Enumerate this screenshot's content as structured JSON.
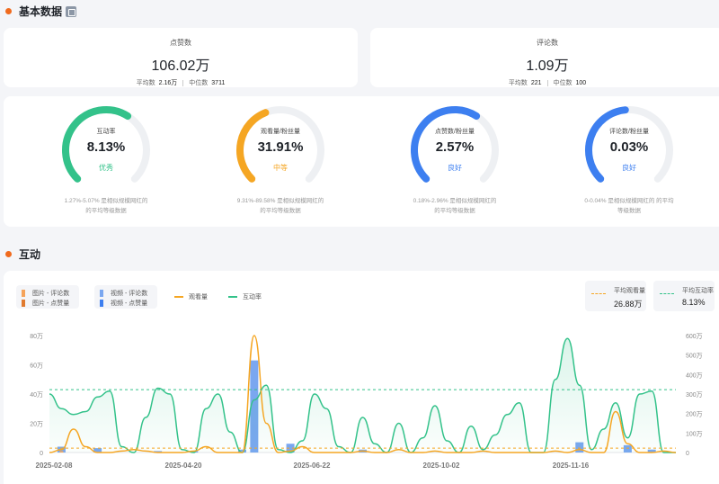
{
  "basic": {
    "title": "基本数据",
    "likes": {
      "label": "点赞数",
      "value": "106.02万",
      "avg_label": "平均数",
      "avg": "2.16万",
      "median_label": "中位数",
      "median": "3711"
    },
    "comments": {
      "label": "评论数",
      "value": "1.09万",
      "avg_label": "平均数",
      "avg": "221",
      "median_label": "中位数",
      "median": "100"
    }
  },
  "gauges": [
    {
      "label": "互动率",
      "value": "8.13%",
      "level": "优秀",
      "color": "#33c28a",
      "fill": 0.62,
      "note1": "1.27%-5.07% 是相似规模网红的",
      "note2": "的平均等级数据"
    },
    {
      "label": "观看量/粉丝量",
      "value": "31.91%",
      "level": "中等",
      "color": "#f5a623",
      "fill": 0.42,
      "note1": "9.31%-89.58% 是相似规模网红的",
      "note2": "的平均等级数据"
    },
    {
      "label": "点赞数/粉丝量",
      "value": "2.57%",
      "level": "良好",
      "color": "#3d7ff0",
      "fill": 0.62,
      "note1": "0.18%-2.96% 是相似规模网红的",
      "note2": "的平均等级数据"
    },
    {
      "label": "评论数/粉丝量",
      "value": "0.03%",
      "level": "良好",
      "color": "#3d7ff0",
      "fill": 0.48,
      "note1": "0-0.04% 是相似规模网红的 的平均",
      "note2": "等级数据"
    }
  ],
  "interaction": {
    "title": "互动",
    "legend": {
      "img_comments": "图片 - 评论数",
      "img_likes": "图片 - 点赞量",
      "vid_comments": "视频 - 评论数",
      "vid_likes": "视频 - 点赞量",
      "views": "观看量",
      "rate": "互动率"
    },
    "avg_views": {
      "label": "平均观看量",
      "value": "26.88万"
    },
    "avg_rate": {
      "label": "平均互动率",
      "value": "8.13%"
    }
  },
  "colors": {
    "accent": "#f06a1d",
    "green": "#33c28a",
    "orange": "#f5a623",
    "blue": "#3d7ff0",
    "bar_blue": "#7aa7f0",
    "bar_orange": "#f5a35a"
  },
  "chart_data": {
    "type": "line",
    "x_labels": [
      "2025-02-08",
      "2025-04-20",
      "2025-06-22",
      "2025-10-02",
      "2025-11-16"
    ],
    "left_axis": {
      "ticks": [
        "0",
        "20万",
        "40万",
        "60万",
        "80万"
      ],
      "ylim": [
        0,
        80
      ]
    },
    "right_axis": {
      "ticks": [
        "0",
        "100万",
        "200万",
        "300万",
        "400万",
        "500万",
        "600万"
      ],
      "ylim": [
        0,
        600
      ]
    },
    "series": [
      {
        "name": "互动率",
        "values": [
          40,
          30,
          26,
          28,
          38,
          42,
          4,
          0,
          24,
          44,
          40,
          2,
          0,
          30,
          40,
          14,
          0,
          36,
          46,
          2,
          0,
          8,
          40,
          30,
          4,
          0,
          24,
          6,
          0,
          20,
          0,
          10,
          32,
          8,
          0,
          18,
          2,
          12,
          26,
          34,
          0,
          0,
          50,
          78,
          46,
          2,
          16,
          34,
          10,
          40,
          42,
          0,
          0
        ]
      },
      {
        "name": "观看量",
        "values": [
          0,
          2,
          16,
          4,
          0,
          0,
          1,
          2,
          1,
          0,
          0,
          0,
          1,
          4,
          0,
          0,
          0,
          80,
          20,
          0,
          1,
          4,
          0,
          0,
          0,
          0,
          1,
          0,
          0,
          2,
          0,
          0,
          1,
          0,
          0,
          0,
          1,
          0,
          0,
          0,
          0,
          0,
          1,
          0,
          2,
          0,
          0,
          28,
          6,
          0,
          0,
          1,
          0
        ]
      },
      {
        "name": "视频 - 点赞量",
        "values": [
          0,
          4,
          0,
          0,
          3,
          0,
          0,
          0,
          0,
          1,
          0,
          0,
          1,
          0,
          0,
          0,
          2,
          63,
          0,
          0,
          6,
          0,
          0,
          0,
          0,
          0,
          2,
          0,
          0,
          0,
          0,
          0,
          0,
          0,
          0,
          0,
          0,
          0,
          0,
          0,
          0,
          0,
          0,
          0,
          7,
          0,
          0,
          0,
          5,
          0,
          2,
          0,
          0
        ]
      },
      {
        "name": "图片 - 点赞量",
        "values": [
          0,
          1,
          0,
          0,
          0,
          0,
          0,
          0,
          0,
          0,
          0,
          0,
          0,
          0,
          0,
          0,
          0,
          0,
          0,
          0,
          0,
          0,
          0,
          0,
          0,
          0,
          0,
          0,
          0,
          0,
          0,
          0,
          0,
          0,
          0,
          0,
          0,
          0,
          0,
          0,
          0,
          0,
          0,
          0,
          0,
          0,
          0,
          0,
          0,
          0,
          0,
          0,
          0
        ]
      }
    ],
    "avg_lines": {
      "avg_rate": 43,
      "avg_views": 3
    }
  }
}
